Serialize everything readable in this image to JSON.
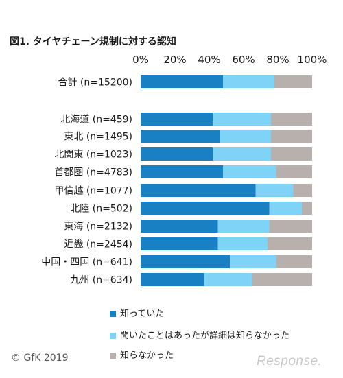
{
  "chart_data": {
    "type": "bar",
    "orientation": "horizontal",
    "stacked": true,
    "title": "図1. タイヤチェーン規制に対する認知",
    "xlim": [
      0,
      100
    ],
    "x_ticks": [
      "0%",
      "20%",
      "40%",
      "60%",
      "80%",
      "100%"
    ],
    "categories": [
      "合計 (n=15200)",
      "北海道 (n=459)",
      "東北 (n=1495)",
      "北関東 (n=1023)",
      "首都圏 (n=4783)",
      "甲信越 (n=1077)",
      "北陸 (n=502)",
      "東海 (n=2132)",
      "近畿 (n=2454)",
      "中国・四国 (n=641)",
      "九州 (n=634)"
    ],
    "series": [
      {
        "name": "知っていた",
        "color": "#1a80c4",
        "values": [
          48,
          42,
          46,
          42,
          48,
          67,
          75,
          45,
          45,
          52,
          37
        ]
      },
      {
        "name": "聞いたことはあったが詳細は知らなかった",
        "color": "#7fd3f7",
        "values": [
          30,
          34,
          30,
          34,
          31,
          22,
          19,
          30,
          29,
          27,
          28
        ]
      },
      {
        "name": "知らなかった",
        "color": "#b7b0ad",
        "values": [
          22,
          24,
          24,
          24,
          21,
          11,
          6,
          25,
          26,
          21,
          35
        ]
      }
    ],
    "legend_position": "bottom",
    "grid": false
  },
  "footer": {
    "copyright": "© GfK 2019",
    "watermark": "Response."
  }
}
